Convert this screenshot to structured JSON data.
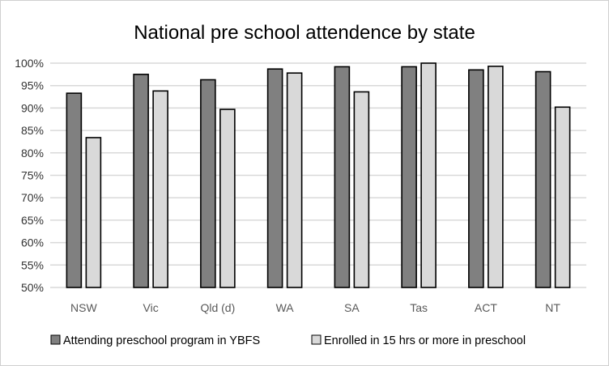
{
  "chart_data": {
    "type": "bar",
    "title": "National pre school attendence by state",
    "xlabel": "",
    "ylabel": "",
    "categories": [
      "NSW",
      "Vic",
      "Qld (d)",
      "WA",
      "SA",
      "Tas",
      "ACT",
      "NT"
    ],
    "series": [
      {
        "name": "Attending preschool program in YBFS",
        "color": "#808080",
        "values": [
          93.3,
          97.5,
          96.3,
          98.7,
          99.2,
          99.2,
          98.5,
          98.1
        ]
      },
      {
        "name": "Enrolled in 15 hrs or more in preschool",
        "color": "#d9d9d9",
        "values": [
          83.4,
          93.8,
          89.7,
          97.8,
          93.6,
          100.0,
          99.3,
          90.2
        ]
      }
    ],
    "ylim": [
      50,
      100
    ],
    "yticks": [
      "50%",
      "55%",
      "60%",
      "65%",
      "70%",
      "75%",
      "80%",
      "85%",
      "90%",
      "95%",
      "100%"
    ],
    "grid": true,
    "legend_position": "bottom"
  }
}
